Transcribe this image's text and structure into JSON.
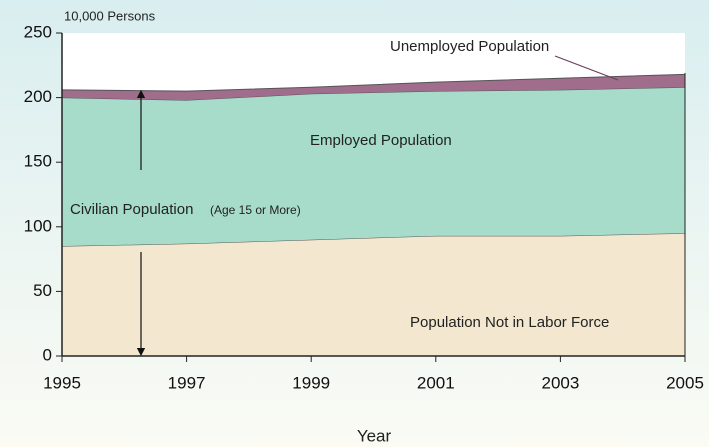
{
  "chart_data": {
    "type": "area",
    "stacked": true,
    "y_unit_label": "10,000 Persons",
    "x_label": "Year",
    "x": [
      1995,
      1997,
      1999,
      2001,
      2003,
      2005
    ],
    "series": [
      {
        "name": "Population Not in Labor Force",
        "color": "#f3e7cf",
        "values": [
          85,
          87,
          90,
          93,
          93,
          95
        ]
      },
      {
        "name": "Employed Population",
        "color": "#a7dccb",
        "values": [
          115,
          111,
          113,
          112,
          113,
          113
        ]
      },
      {
        "name": "Unemployed Population",
        "color": "#a06e8c",
        "values": [
          6,
          7,
          5,
          7,
          9,
          10
        ]
      }
    ],
    "annotations": [
      "Civilian Population",
      "(Age 15 or More)"
    ],
    "xlim": [
      1995,
      2005
    ],
    "xticks": [
      1995,
      1997,
      1999,
      2001,
      2003,
      2005
    ],
    "ylim": [
      0,
      250
    ],
    "yticks": [
      0,
      50,
      100,
      150,
      200,
      250
    ]
  }
}
